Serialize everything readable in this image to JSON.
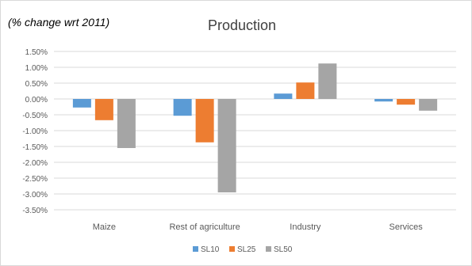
{
  "chart_data": {
    "type": "bar",
    "title": "Production",
    "subtitle": "(% change wrt 2011)",
    "xlabel": "",
    "ylabel": "",
    "categories": [
      "Maize",
      "Rest of agriculture",
      "Industry",
      "Services"
    ],
    "series": [
      {
        "name": "SL10",
        "values": [
          -0.27,
          -0.53,
          0.17,
          -0.08
        ],
        "color": "#5b9bd5"
      },
      {
        "name": "SL25",
        "values": [
          -0.67,
          -1.37,
          0.52,
          -0.18
        ],
        "color": "#ed7d31"
      },
      {
        "name": "SL50",
        "values": [
          -1.55,
          -2.95,
          1.12,
          -0.37
        ],
        "color": "#a5a5a5"
      }
    ],
    "yticks": [
      "1.50%",
      "1.00%",
      "0.50%",
      "0.00%",
      "-0.50%",
      "-1.00%",
      "-1.50%",
      "-2.00%",
      "-2.50%",
      "-3.00%",
      "-3.50%"
    ],
    "ylim": [
      -3.5,
      1.5
    ],
    "grid": true,
    "legend_position": "bottom",
    "gridline_color": "#d9d9d9"
  }
}
